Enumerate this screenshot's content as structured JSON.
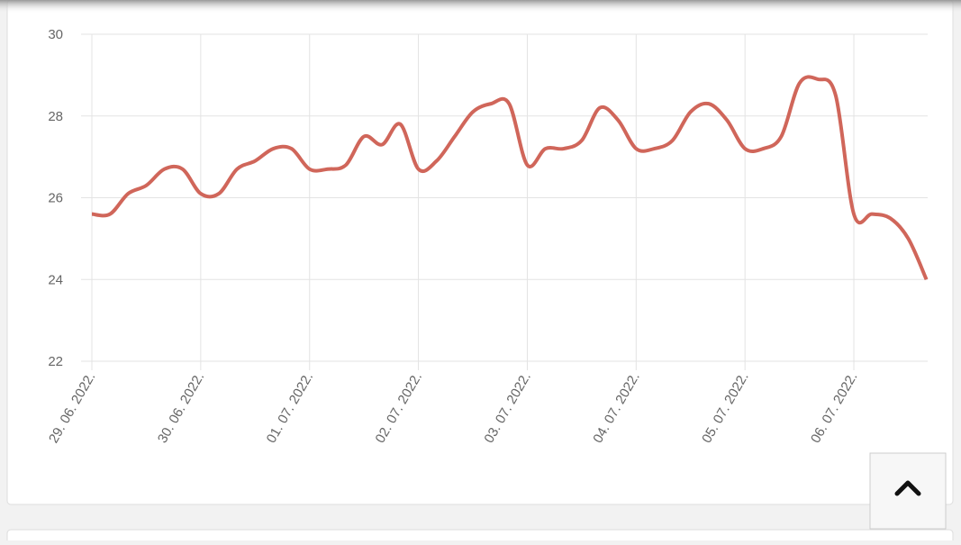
{
  "chart_data": {
    "type": "line",
    "categories": [
      "29. 06. 2022.",
      null,
      null,
      null,
      null,
      null,
      "30. 06. 2022.",
      null,
      null,
      null,
      null,
      null,
      "01. 07. 2022.",
      null,
      null,
      null,
      null,
      null,
      "02. 07. 2022.",
      null,
      null,
      null,
      null,
      null,
      "03. 07. 2022.",
      null,
      null,
      null,
      null,
      null,
      "04. 07. 2022.",
      null,
      null,
      null,
      null,
      null,
      "05. 07. 2022.",
      null,
      null,
      null,
      null,
      null,
      "06. 07. 2022.",
      null,
      null,
      null,
      null
    ],
    "series": [
      {
        "color": "#d0665a",
        "values": [
          25.6,
          25.6,
          26.1,
          26.3,
          26.7,
          26.7,
          26.1,
          26.1,
          26.7,
          26.9,
          27.2,
          27.2,
          26.7,
          26.7,
          26.8,
          27.5,
          27.3,
          27.8,
          26.7,
          26.9,
          27.5,
          28.1,
          28.3,
          28.3,
          26.8,
          27.2,
          27.2,
          27.4,
          28.2,
          27.9,
          27.2,
          27.2,
          27.4,
          28.1,
          28.3,
          27.9,
          27.2,
          27.2,
          27.5,
          28.8,
          28.9,
          28.5,
          25.6,
          25.6,
          25.5,
          25.0,
          24.0
        ]
      }
    ],
    "ylim": [
      22,
      30
    ],
    "yticks": [
      22,
      24,
      26,
      28,
      30
    ],
    "grid": true
  }
}
